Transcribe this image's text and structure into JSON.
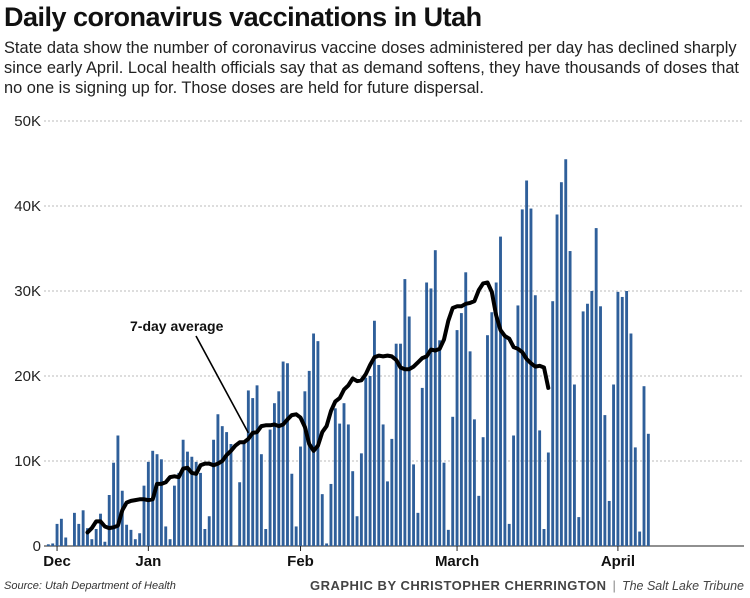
{
  "header": {
    "title": "Daily coronavirus vaccinations in Utah",
    "subtitle": "State data show the number of coronavirus vaccine doses administered per day has declined sharply since early April. Local health officials say that as demand softens, they have thousands of doses that no one is signing up for. Those doses are held for future dispersal."
  },
  "footer": {
    "source": "Source: Utah Department of Health",
    "credit": "GRAPHIC BY CHRISTOPHER CHERRINGTON",
    "separator": "|",
    "publication": "The Salt Lake Tribune"
  },
  "colors": {
    "bar": "#2f5f9a",
    "line": "#000000",
    "grid": "#bbbbbb"
  },
  "chart_data": {
    "type": "bar",
    "title": "Daily coronavirus vaccinations in Utah",
    "xlabel": "",
    "ylabel": "",
    "ylim": [
      0,
      50000
    ],
    "yticks": [
      0,
      10000,
      20000,
      30000,
      40000,
      50000
    ],
    "ytick_labels": [
      "0",
      "10K",
      "20K",
      "30K",
      "40K",
      "50K"
    ],
    "grid": true,
    "x_domain": [
      -1,
      160
    ],
    "month_labels": [
      {
        "label": "Dec",
        "day": 2
      },
      {
        "label": "Jan",
        "day": 23
      },
      {
        "label": "Feb",
        "day": 58
      },
      {
        "label": "March",
        "day": 94
      },
      {
        "label": "April",
        "day": 131
      }
    ],
    "series": [
      {
        "name": "Daily doses",
        "type": "bar",
        "values": [
          200,
          300,
          2600,
          3200,
          1000,
          0,
          3900,
          2600,
          4200,
          2100,
          800,
          2000,
          3800,
          500,
          6000,
          9800,
          13000,
          6500,
          2500,
          1900,
          800,
          1500,
          7100,
          9900,
          11200,
          10800,
          10200,
          2300,
          800,
          7100,
          8600,
          12500,
          11100,
          10500,
          9900,
          8600,
          2000,
          3500,
          12500,
          15500,
          14100,
          13400,
          12000,
          0,
          7500,
          12200,
          18300,
          17400,
          18900,
          10800,
          2000,
          13700,
          16800,
          18200,
          21700,
          21500,
          8500,
          2300,
          11700,
          18200,
          20600,
          25000,
          24100,
          6100,
          300,
          7300,
          16200,
          14400,
          16800,
          14300,
          8800,
          3500,
          10900,
          19800,
          20000,
          26500,
          21300,
          14300,
          7600,
          12600,
          23800,
          23800,
          31400,
          27000,
          9600,
          3900,
          18600,
          31000,
          30300,
          34800,
          24200,
          9800,
          1900,
          15200,
          25400,
          27400,
          32200,
          22900,
          14900,
          5900,
          12800,
          24800,
          27500,
          31000,
          36400,
          24900,
          2600,
          13000,
          28300,
          39600,
          43000,
          39700,
          29500,
          13600,
          2000,
          11000,
          28800,
          39000,
          42800,
          45500,
          34700,
          19000,
          3400,
          27600,
          28500,
          30000,
          37400,
          28200,
          15400,
          5300,
          19000,
          29900,
          29300,
          30000,
          25000,
          11600,
          1700,
          18800,
          13200
        ]
      },
      {
        "name": "7-day average",
        "type": "line",
        "values": [
          1600,
          2100,
          2900,
          2900,
          2300,
          2100,
          2200,
          2400,
          4200,
          5100,
          5300,
          5400,
          5500,
          5500,
          5400,
          5500,
          7300,
          7300,
          7500,
          8100,
          8200,
          8100,
          9100,
          9200,
          8600,
          8500,
          9500,
          9700,
          9700,
          9500,
          9700,
          10000,
          10700,
          11200,
          11800,
          12200,
          12200,
          12600,
          13300,
          13400,
          14100,
          14200,
          14200,
          14300,
          14100,
          14300,
          14900,
          15400,
          15500,
          15100,
          14000,
          12000,
          11200,
          11800,
          13400,
          14100,
          15900,
          17000,
          17400,
          18400,
          18900,
          19700,
          19400,
          19500,
          20200,
          21300,
          22200,
          22400,
          22300,
          22400,
          22300,
          21900,
          21000,
          20800,
          20800,
          21100,
          21600,
          22100,
          22300,
          23100,
          23000,
          23200,
          24300,
          26500,
          28000,
          28200,
          28200,
          28500,
          28600,
          28800,
          30100,
          30900,
          31000,
          29900,
          27100,
          25400,
          24700,
          24400,
          23400,
          23200,
          22800,
          22000,
          21500,
          21100,
          21200,
          21000,
          18600
        ],
        "start_day": 9
      }
    ],
    "annotations": [
      {
        "text": "7-day average",
        "points_to": "line"
      }
    ]
  }
}
